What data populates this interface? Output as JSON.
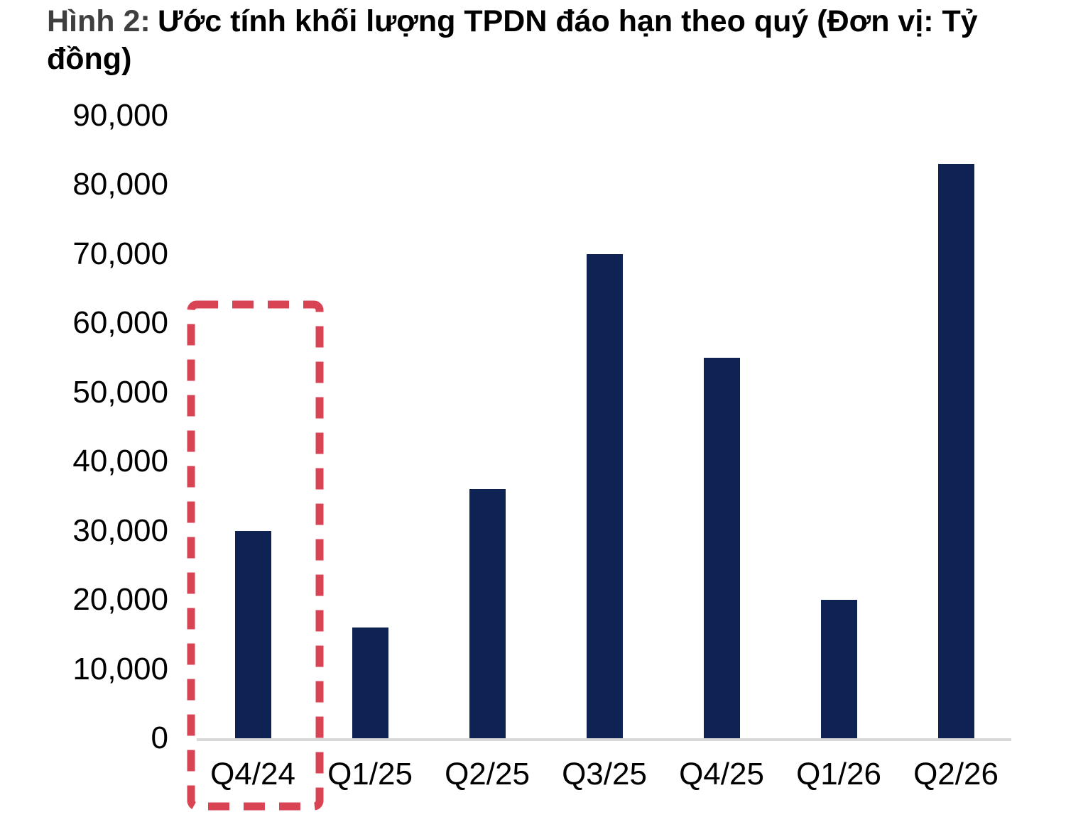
{
  "title": {
    "prefix": "Hình 2:",
    "text": "Ước tính khối lượng TPDN đáo hạn theo quý (Đơn vị: Tỷ đồng)"
  },
  "colors": {
    "bar": "#0e2254",
    "highlight_box": "#d94455",
    "axis_line": "#d8d8d8",
    "title_prefix": "#3f3f3f",
    "text": "#000000"
  },
  "chart_data": {
    "type": "bar",
    "title": "Hình 2: Ước tính khối lượng TPDN đáo hạn theo quý (Đơn vị: Tỷ đồng)",
    "unit": "Tỷ đồng",
    "categories": [
      "Q4/24",
      "Q1/25",
      "Q2/25",
      "Q3/25",
      "Q4/25",
      "Q1/26",
      "Q2/26"
    ],
    "values": [
      30000,
      16000,
      36000,
      70000,
      55000,
      20000,
      83000
    ],
    "xlabel": "",
    "ylabel": "",
    "ylim": [
      0,
      90000
    ],
    "ytick_step": 10000,
    "ytick_labels": [
      "0",
      "10,000",
      "20,000",
      "30,000",
      "40,000",
      "50,000",
      "60,000",
      "70,000",
      "80,000",
      "90,000"
    ],
    "grid": false,
    "legend": false,
    "annotations": [
      {
        "type": "highlight-box",
        "target_category": "Q4/24",
        "style": "red dashed rectangle"
      }
    ]
  }
}
